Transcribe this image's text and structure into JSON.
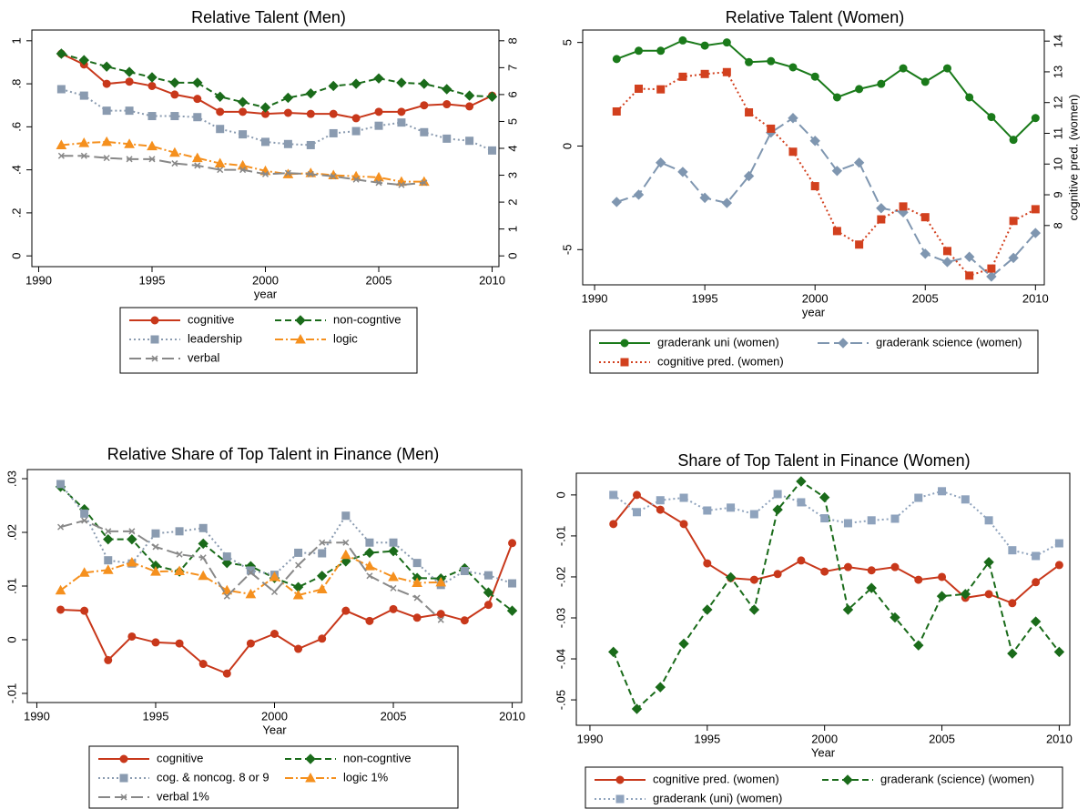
{
  "chart_data": [
    {
      "type": "line",
      "title": "Relative Talent (Men)",
      "xlabel": "year",
      "x": [
        1991,
        1992,
        1993,
        1994,
        1995,
        1996,
        1997,
        1998,
        1999,
        2000,
        2001,
        2002,
        2003,
        2004,
        2005,
        2006,
        2007,
        2008,
        2009,
        2010
      ],
      "xlim": [
        1989.7,
        2010.3
      ],
      "xticks": [
        1990,
        1995,
        2000,
        2005,
        2010
      ],
      "ylim": [
        -0.05,
        1.05
      ],
      "yticks": [
        0,
        {
          "value": 0.2,
          "label": ".2"
        },
        {
          "value": 0.4,
          "label": ".4"
        },
        {
          "value": 0.6,
          "label": ".6"
        },
        {
          "value": 0.8,
          "label": ".8"
        },
        1
      ],
      "y2lim": [
        -0.4,
        8.4
      ],
      "y2ticks": [
        0,
        1,
        2,
        3,
        4,
        5,
        6,
        7,
        8
      ],
      "series": [
        {
          "name": "cognitive",
          "color": "#c8381b",
          "marker": "circle",
          "dash": "solid",
          "values": [
            0.94,
            0.89,
            0.8,
            0.81,
            0.79,
            0.75,
            0.73,
            0.67,
            0.67,
            0.66,
            0.665,
            0.66,
            0.66,
            0.64,
            0.67,
            0.67,
            0.7,
            0.705,
            0.695,
            0.745
          ]
        },
        {
          "name": "non-cogntive",
          "color": "#1a6b1a",
          "marker": "diamond",
          "dash": "dash",
          "values": [
            0.94,
            0.91,
            0.88,
            0.855,
            0.83,
            0.805,
            0.805,
            0.74,
            0.715,
            0.69,
            0.735,
            0.755,
            0.79,
            0.8,
            0.825,
            0.805,
            0.8,
            0.775,
            0.745,
            0.74
          ]
        },
        {
          "name": "leadership",
          "color": "#8a9bb0",
          "marker": "square",
          "dash": "dot",
          "values": [
            0.775,
            0.745,
            0.675,
            0.675,
            0.65,
            0.65,
            0.645,
            0.59,
            0.565,
            0.53,
            0.52,
            0.515,
            0.57,
            0.58,
            0.605,
            0.62,
            0.575,
            0.545,
            0.535,
            0.49
          ]
        },
        {
          "name": "logic",
          "color": "#f5901e",
          "marker": "triangle",
          "dash": "dashdot",
          "axis": "y2",
          "values": [
            4.12,
            4.2,
            4.24,
            4.16,
            4.08,
            3.84,
            3.64,
            3.44,
            3.36,
            3.16,
            3.04,
            3.08,
            3.0,
            2.96,
            2.92,
            2.76,
            2.76,
            null,
            null,
            null
          ]
        },
        {
          "name": "verbal",
          "color": "#888888",
          "marker": "x",
          "dash": "longdash",
          "axis": "y2",
          "values": [
            3.72,
            3.72,
            3.64,
            3.6,
            3.6,
            3.44,
            3.36,
            3.2,
            3.2,
            3.04,
            3.08,
            3.04,
            2.96,
            2.84,
            2.72,
            2.64,
            2.72,
            null,
            null,
            null
          ]
        }
      ]
    },
    {
      "type": "line",
      "title": "Relative Talent (Women)",
      "xlabel": "year",
      "y2label": "cognitive pred. (women)",
      "x": [
        1991,
        1992,
        1993,
        1994,
        1995,
        1996,
        1997,
        1998,
        1999,
        2000,
        2001,
        2002,
        2003,
        2004,
        2005,
        2006,
        2007,
        2008,
        2009,
        2010
      ],
      "xlim": [
        1989.46,
        2010.4
      ],
      "xticks": [
        1990,
        1995,
        2000,
        2005,
        2010
      ],
      "ylim": [
        -6.7,
        5.6
      ],
      "yticks": [
        -5,
        0,
        5
      ],
      "y2lim": [
        6.07,
        14.36
      ],
      "y2ticks": [
        8,
        9,
        10,
        11,
        12,
        13,
        14
      ],
      "series": [
        {
          "name": "graderank uni (women)",
          "color": "#1a7a1a",
          "marker": "circle",
          "dash": "solid",
          "values": [
            4.2,
            4.6,
            4.6,
            5.1,
            4.85,
            5.0,
            4.05,
            4.1,
            3.8,
            3.35,
            2.35,
            2.75,
            3.0,
            3.75,
            3.1,
            3.75,
            2.35,
            1.4,
            0.3,
            1.35
          ]
        },
        {
          "name": "graderank science (women)",
          "color": "#7f96b0",
          "marker": "diamond",
          "dash": "longdash",
          "values": [
            -2.7,
            -2.35,
            -0.8,
            -1.25,
            -2.5,
            -2.75,
            -1.45,
            0.65,
            1.35,
            0.25,
            -1.2,
            -0.8,
            -3.0,
            -3.2,
            -5.2,
            -5.6,
            -5.35,
            -6.3,
            -5.4,
            -4.2
          ]
        },
        {
          "name": "cognitive pred. (women)",
          "color": "#d2401e",
          "marker": "square",
          "dash": "dot",
          "axis": "y2",
          "values": [
            11.71,
            12.45,
            12.43,
            12.84,
            12.93,
            12.99,
            11.68,
            11.15,
            10.4,
            9.28,
            7.82,
            7.38,
            8.2,
            8.62,
            8.27,
            7.17,
            6.37,
            6.6,
            8.15,
            8.53
          ]
        }
      ]
    },
    {
      "type": "line",
      "title": "Relative Share of Top Talent in Finance (Men)",
      "xlabel": "Year",
      "x": [
        1991,
        1992,
        1993,
        1994,
        1995,
        1996,
        1997,
        1998,
        1999,
        2000,
        2001,
        2002,
        2003,
        2004,
        2005,
        2006,
        2007,
        2008,
        2009,
        2010
      ],
      "xlim": [
        1989.6,
        2010.4
      ],
      "xticks": [
        1990,
        1995,
        2000,
        2005,
        2010
      ],
      "ylim": [
        -0.0117,
        0.0317
      ],
      "yticks": [
        {
          "value": -0.01,
          "label": "-.01"
        },
        0,
        {
          "value": 0.01,
          "label": ".01"
        },
        {
          "value": 0.02,
          "label": ".02"
        },
        {
          "value": 0.03,
          "label": ".03"
        }
      ],
      "series": [
        {
          "name": "cognitive",
          "color": "#c8381b",
          "marker": "circle",
          "dash": "solid",
          "values": [
            0.0056,
            0.0054,
            -0.0038,
            0.0006,
            -0.0005,
            -0.0007,
            -0.0045,
            -0.0063,
            -0.0007,
            0.0011,
            -0.0017,
            0.0002,
            0.0054,
            0.0035,
            0.0057,
            0.0041,
            0.0048,
            0.0036,
            0.0065,
            0.018
          ]
        },
        {
          "name": "non-cogntive",
          "color": "#1a6b1a",
          "marker": "diamond",
          "dash": "dash",
          "values": [
            0.0285,
            0.0243,
            0.0187,
            0.0187,
            0.0138,
            0.0127,
            0.0179,
            0.0143,
            0.0137,
            0.0115,
            0.0098,
            0.0119,
            0.0146,
            0.0162,
            0.0165,
            0.0115,
            0.0114,
            0.0133,
            0.0088,
            0.0054
          ]
        },
        {
          "name": "cog. & noncog. 8 or 9",
          "color": "#8a9bb0",
          "marker": "square",
          "dash": "dot",
          "values": [
            0.029,
            0.0235,
            0.0148,
            0.0142,
            0.0198,
            0.0202,
            0.0208,
            0.0155,
            0.0129,
            0.0121,
            0.0162,
            0.0161,
            0.0231,
            0.0181,
            0.0181,
            0.0143,
            0.0102,
            0.0128,
            0.012,
            0.0105
          ]
        },
        {
          "name": "logic 1%",
          "color": "#f5901e",
          "marker": "triangle",
          "dash": "dashdot",
          "values": [
            0.0092,
            0.0125,
            0.013,
            0.0144,
            0.0127,
            0.0128,
            0.0119,
            0.0092,
            0.0085,
            0.0117,
            0.0083,
            0.0094,
            0.0158,
            0.0137,
            0.0117,
            0.0106,
            0.0107,
            null,
            null,
            null
          ]
        },
        {
          "name": "verbal 1%",
          "color": "#888888",
          "marker": "x",
          "dash": "longdash",
          "values": [
            0.021,
            0.0222,
            0.0202,
            0.0202,
            0.0173,
            0.0159,
            0.0153,
            0.0081,
            0.0125,
            0.0089,
            0.0139,
            0.0181,
            0.0181,
            0.0119,
            0.0096,
            0.0078,
            0.0037,
            null,
            null,
            null
          ]
        }
      ]
    },
    {
      "type": "line",
      "title": "Share of Top Talent in Finance (Women)",
      "xlabel": "Year",
      "x": [
        1991,
        1992,
        1993,
        1994,
        1995,
        1996,
        1997,
        1998,
        1999,
        2000,
        2001,
        2002,
        2003,
        2004,
        2005,
        2006,
        2007,
        2008,
        2009,
        2010
      ],
      "xlim": [
        1989.42,
        2010.45
      ],
      "xticks": [
        1990,
        1995,
        2000,
        2005,
        2010
      ],
      "ylim": [
        -0.0562,
        0.0053
      ],
      "yticks": [
        {
          "value": -0.05,
          "label": "-.05"
        },
        {
          "value": -0.04,
          "label": "-.04"
        },
        {
          "value": -0.03,
          "label": "-.03"
        },
        {
          "value": -0.02,
          "label": "-.02"
        },
        {
          "value": -0.01,
          "label": "-.01"
        },
        0
      ],
      "series": [
        {
          "name": "cognitive pred. (women)",
          "color": "#c8381b",
          "marker": "circle",
          "dash": "solid",
          "values": [
            -0.0071,
            0.0,
            -0.0036,
            -0.0071,
            -0.0167,
            -0.0203,
            -0.0207,
            -0.0193,
            -0.016,
            -0.0187,
            -0.0176,
            -0.0184,
            -0.0176,
            -0.0207,
            -0.02,
            -0.0251,
            -0.0242,
            -0.0264,
            -0.0213,
            -0.0171
          ]
        },
        {
          "name": "graderank (science) (women)",
          "color": "#1a6b1a",
          "marker": "diamond",
          "dash": "dash",
          "values": [
            -0.0383,
            -0.0522,
            -0.0469,
            -0.0363,
            -0.028,
            -0.0201,
            -0.028,
            -0.0036,
            0.0033,
            -0.0006,
            -0.028,
            -0.0227,
            -0.0299,
            -0.0367,
            -0.0247,
            -0.0242,
            -0.0164,
            -0.0387,
            -0.0309,
            -0.0383
          ]
        },
        {
          "name": "graderank (uni) (women)",
          "color": "#8fa3bd",
          "marker": "square",
          "dash": "dot",
          "values": [
            0.0,
            -0.0042,
            -0.0013,
            -0.0007,
            -0.0038,
            -0.0031,
            -0.0047,
            0.0002,
            -0.0018,
            -0.0057,
            -0.0069,
            -0.0062,
            -0.0058,
            -0.0007,
            0.0009,
            -0.0011,
            -0.0062,
            -0.0135,
            -0.0149,
            -0.0118
          ]
        }
      ]
    }
  ]
}
